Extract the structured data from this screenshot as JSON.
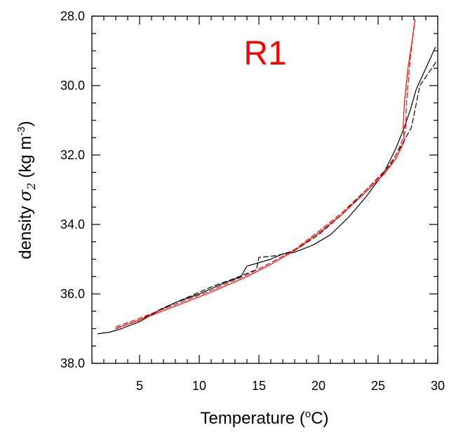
{
  "chart_data": {
    "type": "line",
    "panel_label": "R1",
    "panel_label_color": "#ff0000",
    "xlabel": "Temperature (",
    "xlabel_sup": "o",
    "xlabel_tail": "C)",
    "ylabel_main": "density ",
    "ylabel_sigma": "σ",
    "ylabel_sub": "2",
    "ylabel_units": " (kg m",
    "ylabel_sup": "-3",
    "ylabel_close": ")",
    "xlim": [
      1,
      30
    ],
    "ylim": [
      28,
      38
    ],
    "y_inverted": true,
    "xticks": [
      5,
      10,
      15,
      20,
      25,
      30
    ],
    "xtick_labels": [
      "5",
      "10",
      "15",
      "20",
      "25",
      "30"
    ],
    "yticks": [
      28,
      30,
      32,
      34,
      36,
      38
    ],
    "ytick_labels": [
      "28.0",
      "30.0",
      "32.0",
      "34.0",
      "36.0",
      "38.0"
    ],
    "grid": false,
    "series": [
      {
        "color": "#000000",
        "dash": "solid",
        "points": [
          [
            1.5,
            37.15
          ],
          [
            2.5,
            37.1
          ],
          [
            3.5,
            37.0
          ],
          [
            5,
            36.8
          ],
          [
            6.5,
            36.5
          ],
          [
            8,
            36.25
          ],
          [
            10,
            36.0
          ],
          [
            12,
            35.7
          ],
          [
            13.5,
            35.5
          ],
          [
            14,
            35.2
          ],
          [
            15,
            35.1
          ],
          [
            16,
            35.0
          ],
          [
            17,
            34.85
          ],
          [
            18,
            34.8
          ],
          [
            19.5,
            34.6
          ],
          [
            21,
            34.3
          ],
          [
            22.5,
            33.8
          ],
          [
            24,
            33.2
          ],
          [
            25.5,
            32.5
          ],
          [
            26.5,
            31.8
          ],
          [
            27.2,
            31.2
          ],
          [
            27.7,
            30.7
          ],
          [
            28.2,
            30.1
          ],
          [
            29,
            29.5
          ],
          [
            29.8,
            28.9
          ]
        ]
      },
      {
        "color": "#000000",
        "dash": "dashed",
        "points": [
          [
            3,
            37.0
          ],
          [
            5,
            36.75
          ],
          [
            7,
            36.4
          ],
          [
            9,
            36.1
          ],
          [
            11,
            35.8
          ],
          [
            13,
            35.55
          ],
          [
            14.8,
            35.3
          ],
          [
            15.0,
            34.95
          ],
          [
            16.5,
            34.9
          ],
          [
            18,
            34.75
          ],
          [
            20,
            34.3
          ],
          [
            22,
            33.7
          ],
          [
            24,
            33.0
          ],
          [
            26,
            32.3
          ],
          [
            27.0,
            31.7
          ],
          [
            27.8,
            31.2
          ],
          [
            28.5,
            30.0
          ],
          [
            29.9,
            29.3
          ]
        ]
      },
      {
        "color": "#ff0000",
        "dash": "solid",
        "points": [
          [
            3,
            37.0
          ],
          [
            5,
            36.75
          ],
          [
            8,
            36.35
          ],
          [
            11,
            35.95
          ],
          [
            14,
            35.5
          ],
          [
            16,
            35.15
          ],
          [
            18,
            34.75
          ],
          [
            20,
            34.25
          ],
          [
            22,
            33.7
          ],
          [
            24,
            33.05
          ],
          [
            25.5,
            32.55
          ],
          [
            26.5,
            32.1
          ],
          [
            27.2,
            31.6
          ],
          [
            27.1,
            31.2
          ],
          [
            27.2,
            30.5
          ],
          [
            27.5,
            29.5
          ],
          [
            27.9,
            28.6
          ],
          [
            28.1,
            28.1
          ]
        ]
      },
      {
        "color": "#ff0000",
        "dash": "dashed",
        "points": [
          [
            3,
            36.95
          ],
          [
            5,
            36.7
          ],
          [
            8,
            36.3
          ],
          [
            11,
            35.9
          ],
          [
            14,
            35.45
          ],
          [
            16,
            35.1
          ],
          [
            18,
            34.72
          ],
          [
            20,
            34.2
          ],
          [
            22,
            33.65
          ],
          [
            24,
            33.0
          ],
          [
            25.5,
            32.5
          ],
          [
            26.5,
            32.0
          ],
          [
            27.0,
            31.6
          ],
          [
            27.3,
            31.3
          ],
          [
            27.4,
            30.4
          ],
          [
            27.7,
            29.2
          ],
          [
            28.0,
            28.3
          ]
        ]
      }
    ]
  }
}
